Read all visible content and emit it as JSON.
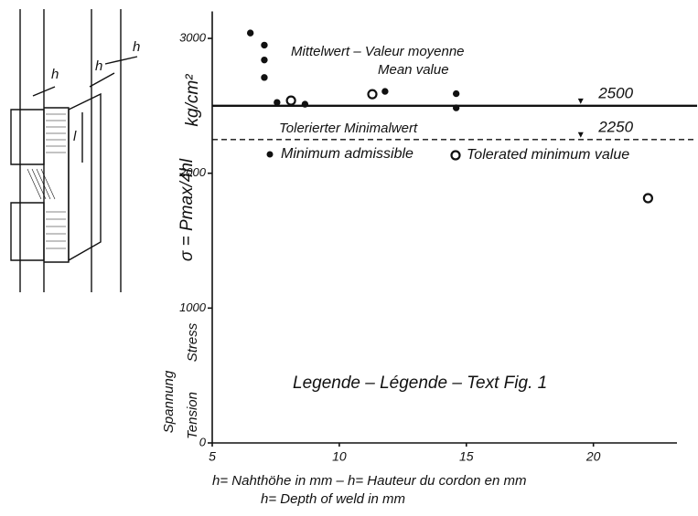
{
  "chart_data": {
    "type": "scatter",
    "title": "Legende – Légende – Text Fig. 1",
    "x_label": [
      "h= Nahthöhe  in mm  – h= Hauteur du cordon en mm",
      "h= Depth of weld in mm"
    ],
    "y_label": [
      "kg/cm²",
      "σ = Pmax/4hl",
      "Stress",
      "Spannung",
      "Tension"
    ],
    "annotations": [
      "Mittelwert – Valeur  moyenne",
      "Mean value",
      "Tolerierter Minimalwert"
    ],
    "diagram_labels": [
      "h",
      "h",
      "h",
      "l"
    ],
    "xlim": [
      5,
      23
    ],
    "ylim": [
      0,
      3200
    ],
    "xticks": [
      5,
      10,
      15,
      20
    ],
    "yticks": [
      0,
      1000,
      2000,
      3000
    ],
    "reference_lines": [
      {
        "value": 2500,
        "style": "solid"
      },
      {
        "value": 2250,
        "style": "dashed"
      }
    ],
    "series": [
      {
        "name": "Minimum admissible",
        "marker": "filled",
        "color": "#111111",
        "x": [
          6.5,
          7.05,
          7.05,
          7.05,
          7.55,
          8.65,
          11.8,
          14.6,
          14.6
        ],
        "values": [
          3040,
          2950,
          2840,
          2710,
          2525,
          2512,
          2607,
          2590,
          2485
        ]
      },
      {
        "name": "Tolerated minimum value",
        "marker": "open",
        "color": "#111111",
        "x": [
          8.1,
          11.3,
          22.15
        ],
        "values": [
          2539,
          2586,
          1815
        ]
      }
    ]
  }
}
